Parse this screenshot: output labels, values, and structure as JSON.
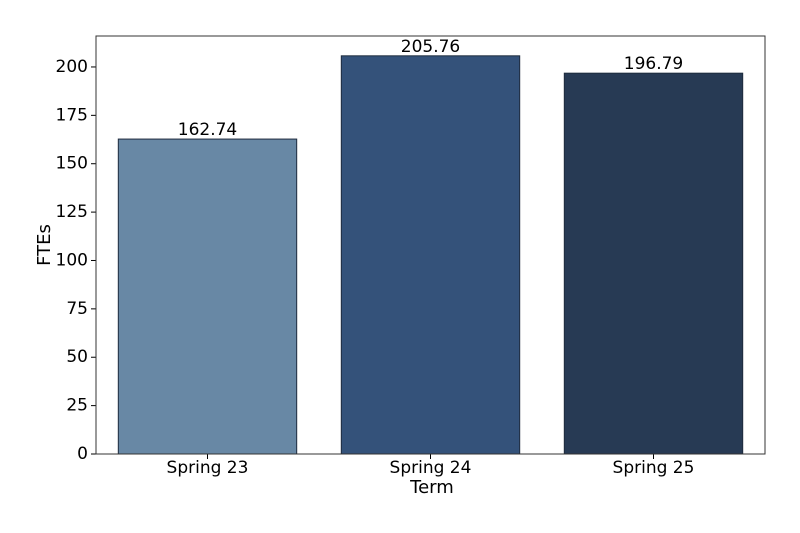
{
  "chart_data": {
    "type": "bar",
    "xlabel": "Term",
    "ylabel": "FTEs",
    "categories": [
      "Spring 23",
      "Spring 24",
      "Spring 25"
    ],
    "values": [
      162.74,
      205.76,
      196.79
    ],
    "colors": [
      "#6888a5",
      "#34527a",
      "#273a54"
    ],
    "ylim": [
      0,
      216
    ],
    "yticks": [
      0,
      25,
      50,
      75,
      100,
      125,
      150,
      175,
      200
    ]
  }
}
